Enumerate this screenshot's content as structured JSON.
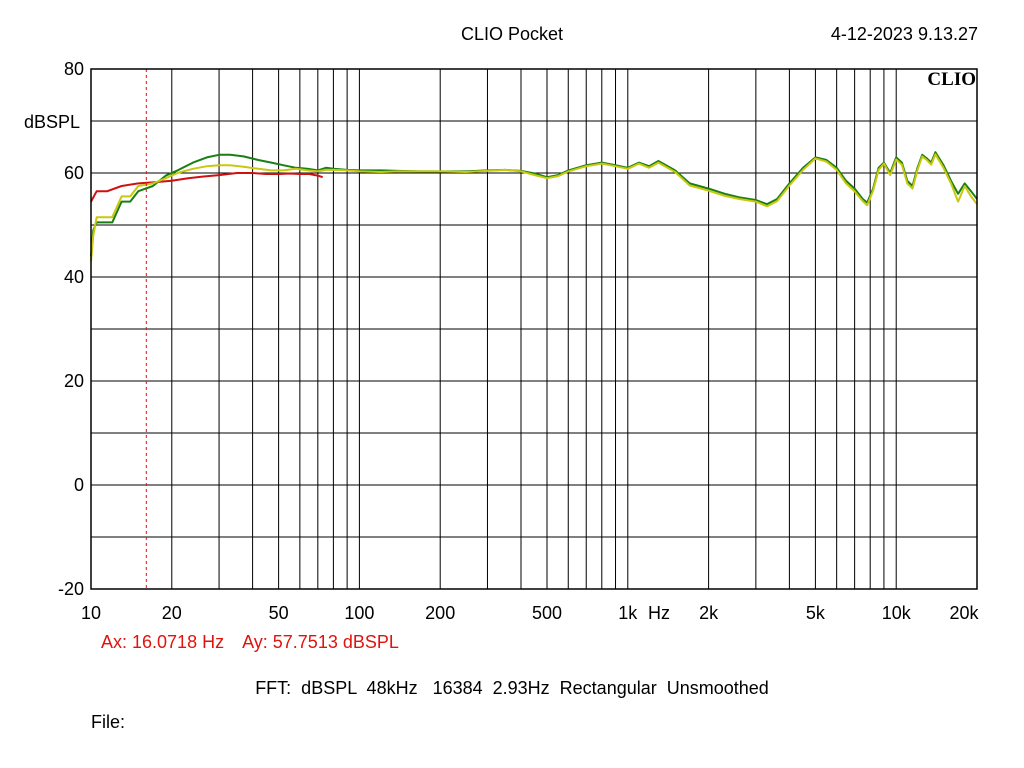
{
  "header": {
    "title": "CLIO Pocket",
    "timestamp": "4-12-2023 9.13.27",
    "logo": "CLIO"
  },
  "cursor": {
    "ax": "Ax: 16.0718 Hz",
    "ay": "Ay: 57.7513 dBSPL",
    "ax_value": 16.0718,
    "color": "#e0140e"
  },
  "footer": {
    "fft_info": "FFT:  dBSPL  48kHz   16384  2.93Hz  Rectangular  Unsmoothed",
    "file_label": "File:"
  },
  "chart_data": {
    "type": "line",
    "xscale": "log",
    "xlim": [
      10,
      20000
    ],
    "ylim": [
      -20,
      80
    ],
    "ylabel": "dBSPL",
    "xunit_label": "Hz",
    "grid": true,
    "legend": "none",
    "x_ticks": [
      {
        "v": 10,
        "label": "10"
      },
      {
        "v": 20,
        "label": "20"
      },
      {
        "v": 50,
        "label": "50"
      },
      {
        "v": 100,
        "label": "100"
      },
      {
        "v": 200,
        "label": "200"
      },
      {
        "v": 500,
        "label": "500"
      },
      {
        "v": 1000,
        "label": "1k"
      },
      {
        "v": 2000,
        "label": "2k"
      },
      {
        "v": 5000,
        "label": "5k"
      },
      {
        "v": 10000,
        "label": "10k"
      },
      {
        "v": 20000,
        "label": "20k"
      }
    ],
    "y_ticks": [
      {
        "v": 80,
        "label": "80"
      },
      {
        "v": 60,
        "label": "60"
      },
      {
        "v": 40,
        "label": "40"
      },
      {
        "v": 20,
        "label": "20"
      },
      {
        "v": 0,
        "label": "0"
      },
      {
        "v": -20,
        "label": "-20"
      }
    ],
    "series": [
      {
        "color": "#d01010",
        "x": [
          10,
          10.5,
          11.5,
          13,
          15,
          17,
          20,
          23,
          26,
          30,
          35,
          40,
          45,
          50,
          55,
          60,
          65,
          70,
          73
        ],
        "y": [
          54.5,
          56.5,
          56.5,
          57.5,
          58.0,
          58.2,
          58.5,
          59.0,
          59.3,
          59.6,
          60.0,
          60.0,
          59.8,
          59.8,
          59.9,
          59.8,
          59.8,
          59.5,
          59.2
        ]
      },
      {
        "color": "#1a7f12",
        "x": [
          10,
          10.2,
          10.5,
          11,
          12,
          13,
          14,
          15,
          17,
          19,
          21,
          24,
          27,
          30,
          33,
          37,
          42,
          47,
          52,
          58,
          64,
          70,
          75,
          80,
          90,
          100,
          120,
          140,
          170,
          200,
          250,
          300,
          350,
          400,
          450,
          500,
          550,
          600,
          700,
          800,
          900,
          1000,
          1100,
          1200,
          1300,
          1500,
          1700,
          2000,
          2300,
          2600,
          3000,
          3300,
          3600,
          4000,
          4500,
          5000,
          5500,
          6000,
          6500,
          7000,
          7500,
          7800,
          8200,
          8600,
          9000,
          9500,
          10000,
          10500,
          11000,
          11500,
          12000,
          12500,
          13000,
          13500,
          14000,
          15000,
          16000,
          17000,
          18000,
          19000,
          20000
        ],
        "y": [
          44,
          49,
          50.5,
          50.5,
          50.5,
          54.5,
          54.5,
          56.5,
          57.5,
          59.5,
          60.5,
          62.0,
          63.0,
          63.5,
          63.5,
          63.2,
          62.5,
          62.0,
          61.5,
          61.0,
          60.8,
          60.5,
          61.0,
          60.8,
          60.6,
          60.5,
          60.5,
          60.4,
          60.3,
          60.3,
          60.3,
          60.5,
          60.6,
          60.4,
          59.9,
          59.2,
          59.6,
          60.5,
          61.5,
          62.0,
          61.5,
          61.0,
          62.0,
          61.3,
          62.3,
          60.5,
          58.0,
          57.0,
          56.0,
          55.3,
          54.8,
          54.0,
          55.0,
          58.0,
          61.0,
          63.0,
          62.5,
          61.0,
          58.5,
          57.0,
          55.0,
          54.3,
          57.0,
          61.0,
          62.0,
          60.0,
          63.0,
          62.0,
          58.5,
          57.5,
          61.0,
          63.5,
          62.8,
          62.0,
          64.0,
          61.5,
          58.5,
          56.0,
          58.0,
          56.5,
          55.0
        ]
      },
      {
        "color": "#c8c80e",
        "x": [
          10,
          10.2,
          10.5,
          11,
          12,
          13,
          14,
          15,
          17,
          19,
          21,
          24,
          27,
          30,
          33,
          37,
          42,
          47,
          52,
          58,
          64,
          70,
          75,
          80,
          90,
          100,
          120,
          140,
          170,
          200,
          250,
          300,
          350,
          400,
          450,
          500,
          550,
          600,
          700,
          800,
          900,
          1000,
          1100,
          1200,
          1300,
          1500,
          1700,
          2000,
          2300,
          2600,
          3000,
          3300,
          3600,
          4000,
          4500,
          5000,
          5500,
          6000,
          6500,
          7000,
          7500,
          7800,
          8200,
          8600,
          9000,
          9500,
          10000,
          10500,
          11000,
          11500,
          12000,
          12500,
          13000,
          13500,
          14000,
          15000,
          16000,
          17000,
          18000,
          19000,
          20000
        ],
        "y": [
          43,
          48,
          51.5,
          51.5,
          51.5,
          55.5,
          55.5,
          57.5,
          58.0,
          59.0,
          60.0,
          60.8,
          61.3,
          61.5,
          61.5,
          61.2,
          60.8,
          60.5,
          60.5,
          60.8,
          60.5,
          60.3,
          60.6,
          60.6,
          60.5,
          60.3,
          60.2,
          60.3,
          60.3,
          60.3,
          60.2,
          60.4,
          60.6,
          60.3,
          59.6,
          59.0,
          59.4,
          60.3,
          61.3,
          61.8,
          61.3,
          60.8,
          61.8,
          61.0,
          62.0,
          60.2,
          57.6,
          56.6,
          55.6,
          55.0,
          54.5,
          53.6,
          54.6,
          57.6,
          60.6,
          62.8,
          62.2,
          60.6,
          58.0,
          56.5,
          54.6,
          53.8,
          56.6,
          60.6,
          61.8,
          59.6,
          62.6,
          61.6,
          58.0,
          57.0,
          60.6,
          63.2,
          62.5,
          61.6,
          63.6,
          61.0,
          58.0,
          54.5,
          57.5,
          55.5,
          54.0
        ]
      }
    ]
  }
}
